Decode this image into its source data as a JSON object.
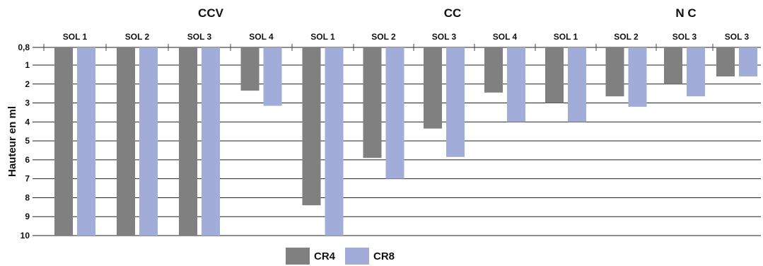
{
  "chart_data": {
    "type": "bar",
    "ylabel": "Hauteur en ml",
    "y_inverted": true,
    "ylim": [
      0.8,
      10
    ],
    "yticks": [
      0.8,
      1,
      2,
      3,
      4,
      5,
      6,
      7,
      8,
      9,
      10
    ],
    "ytick_labels": [
      "0,8",
      "1",
      "2",
      "3",
      "4",
      "5",
      "6",
      "7",
      "8",
      "9",
      "10"
    ],
    "groups": [
      {
        "name": "CCV",
        "categories": [
          "SOL 1",
          "SOL 2",
          "SOL 3",
          "SOL 4"
        ]
      },
      {
        "name": "CC",
        "categories": [
          "SOL 1",
          "SOL 2",
          "SOL 3",
          "SOL 4"
        ]
      },
      {
        "name": "N C",
        "categories": [
          "SOL 1",
          "SOL 2",
          "SOL 3",
          "SOL 3"
        ]
      }
    ],
    "categories": [
      "SOL 1",
      "SOL 2",
      "SOL 3",
      "SOL 4",
      "SOL 1",
      "SOL 2",
      "SOL 3",
      "SOL 4",
      "SOL 1",
      "SOL 2",
      "SOL 3",
      "SOL 3"
    ],
    "series": [
      {
        "name": "CR4",
        "color": "#808080",
        "values": [
          10,
          10,
          10,
          2.35,
          8.4,
          5.9,
          4.35,
          2.45,
          3.0,
          2.65,
          2.0,
          1.6
        ]
      },
      {
        "name": "CR8",
        "color": "#a2acd8",
        "values": [
          10,
          10,
          10,
          3.15,
          10,
          7.0,
          5.85,
          4.0,
          4.0,
          3.2,
          2.65,
          1.6
        ]
      }
    ]
  },
  "legend": {
    "items": [
      {
        "label": "CR4",
        "color": "#808080"
      },
      {
        "label": "CR8",
        "color": "#a2acd8"
      }
    ]
  }
}
